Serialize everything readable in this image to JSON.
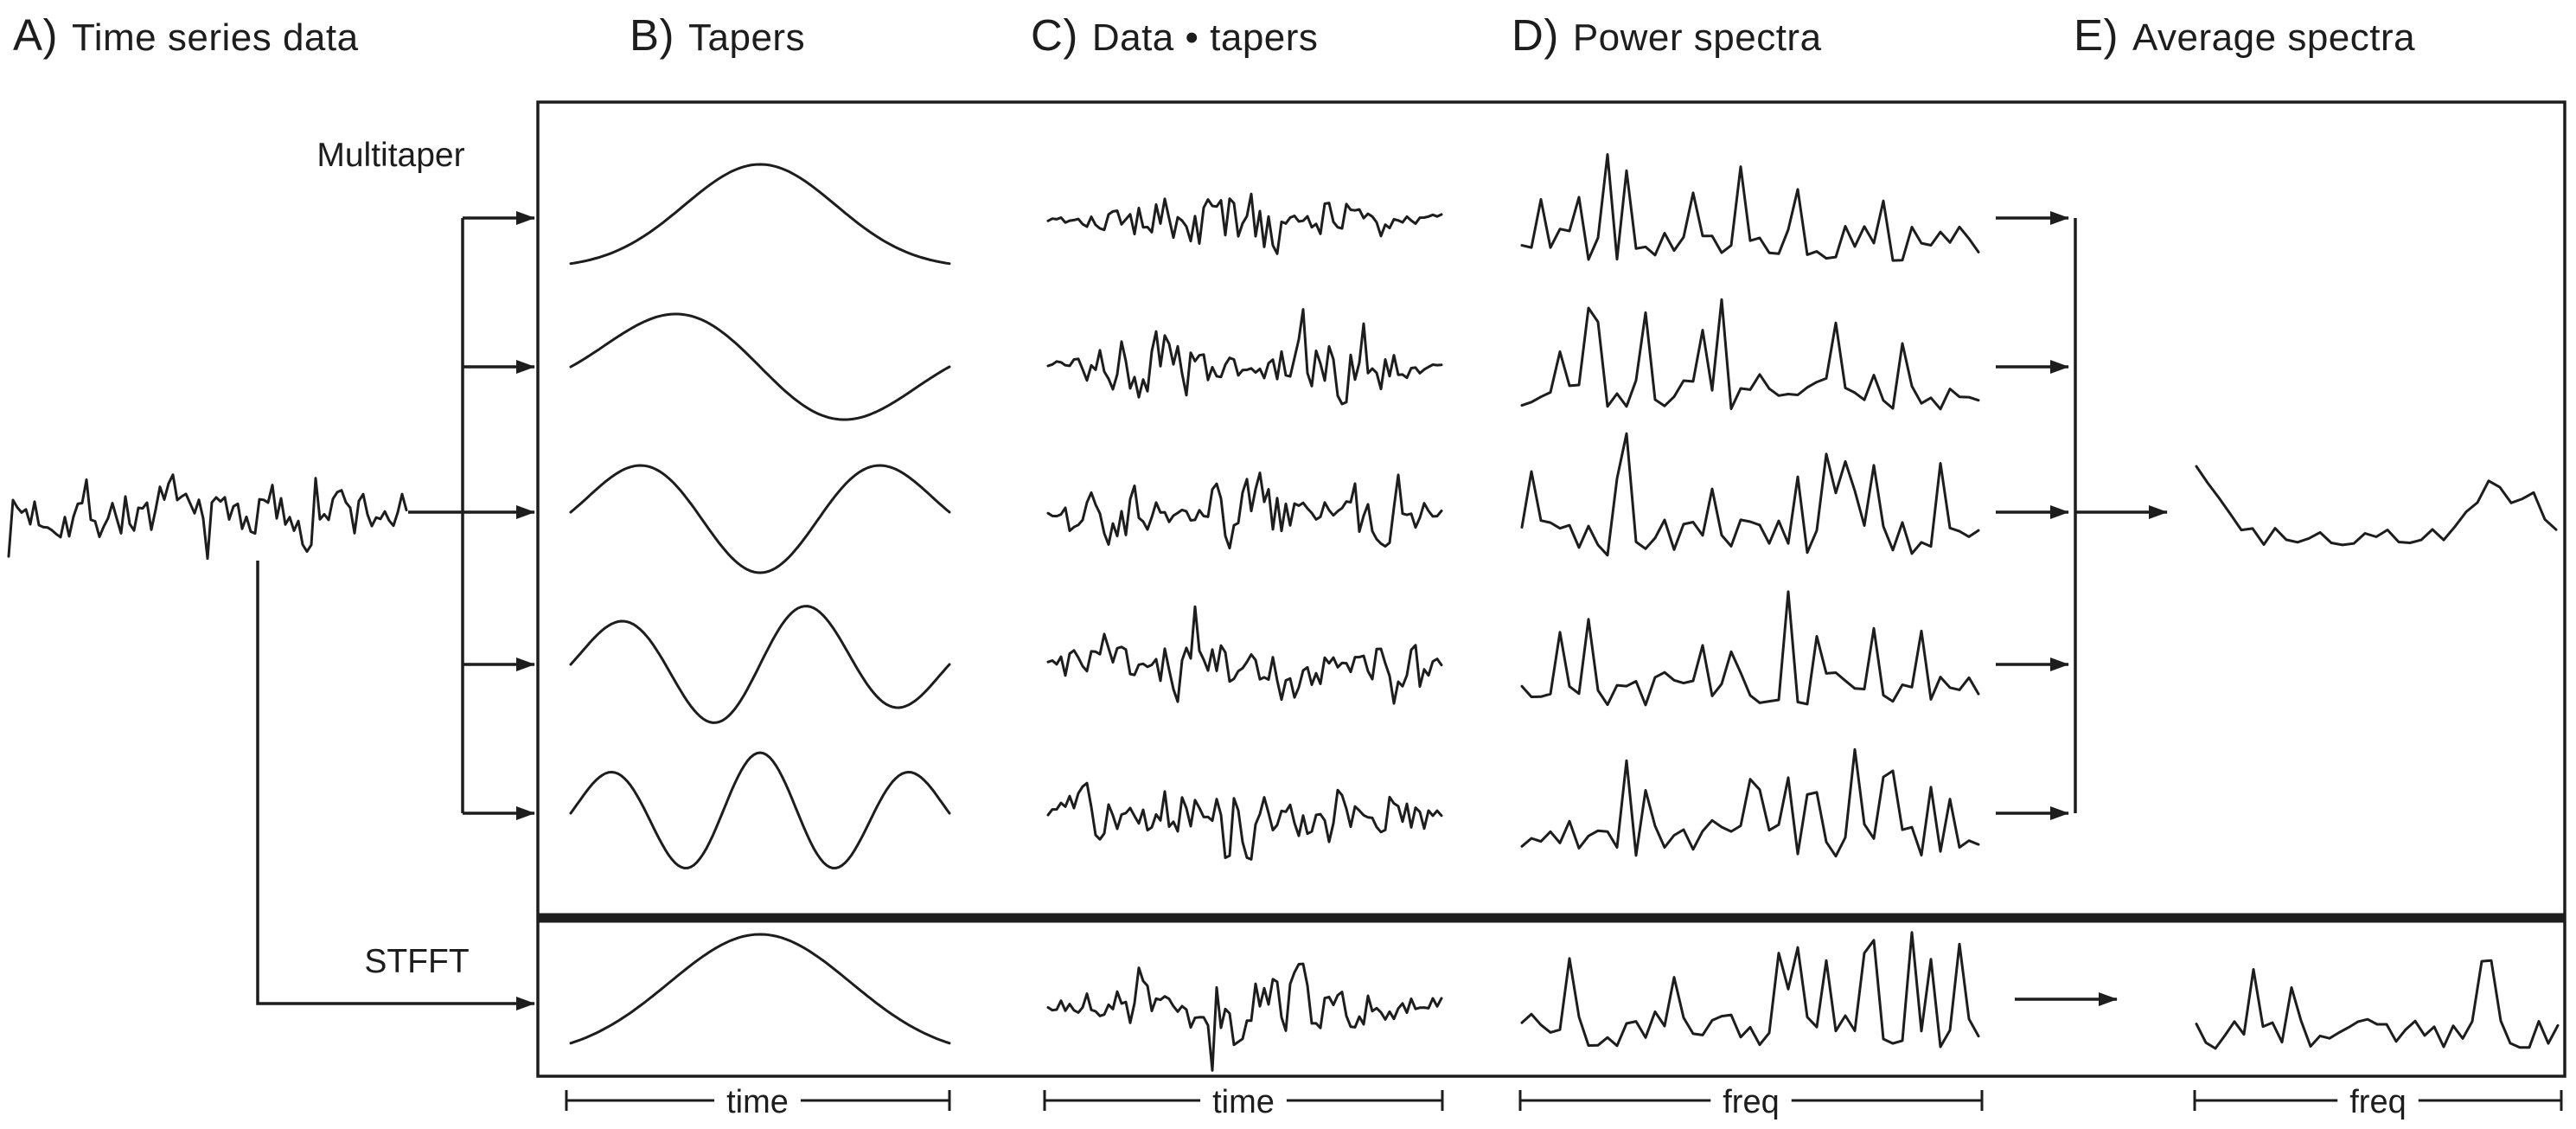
{
  "headers": {
    "a": {
      "prefix": "A)",
      "label": "Time series data"
    },
    "b": {
      "prefix": "B)",
      "label": "Tapers"
    },
    "c": {
      "prefix": "C)",
      "label": "Data • tapers"
    },
    "d": {
      "prefix": "D)",
      "label": "Power spectra"
    },
    "e": {
      "prefix": "E)",
      "label": "Average spectra"
    }
  },
  "branch_labels": {
    "multitaper": "Multitaper",
    "stfft": "STFFT"
  },
  "axis_labels": {
    "b": "time",
    "c": "time",
    "d": "freq",
    "e": "freq"
  },
  "colors": {
    "ink": "#1d1d1d",
    "background": "#ffffff"
  },
  "waveforms": {
    "time_series": {
      "type": "noise",
      "seed": 7
    },
    "multitaper_rows": [
      {
        "taper_order": 1,
        "zero_crossings": 0,
        "data_taper_seed": 101,
        "spectrum_seed": 201
      },
      {
        "taper_order": 2,
        "zero_crossings": 1,
        "data_taper_seed": 102,
        "spectrum_seed": 202
      },
      {
        "taper_order": 3,
        "zero_crossings": 2,
        "data_taper_seed": 103,
        "spectrum_seed": 203
      },
      {
        "taper_order": 4,
        "zero_crossings": 3,
        "data_taper_seed": 104,
        "spectrum_seed": 204
      },
      {
        "taper_order": 5,
        "zero_crossings": 4,
        "data_taper_seed": 105,
        "spectrum_seed": 205
      }
    ],
    "multitaper_average": {
      "type": "smoothed-spectrum",
      "seed": 301
    },
    "stfft_row": {
      "taper": "single-bell",
      "data_taper_seed": 106,
      "spectrum_seed": 206,
      "average_seed": 302
    }
  }
}
